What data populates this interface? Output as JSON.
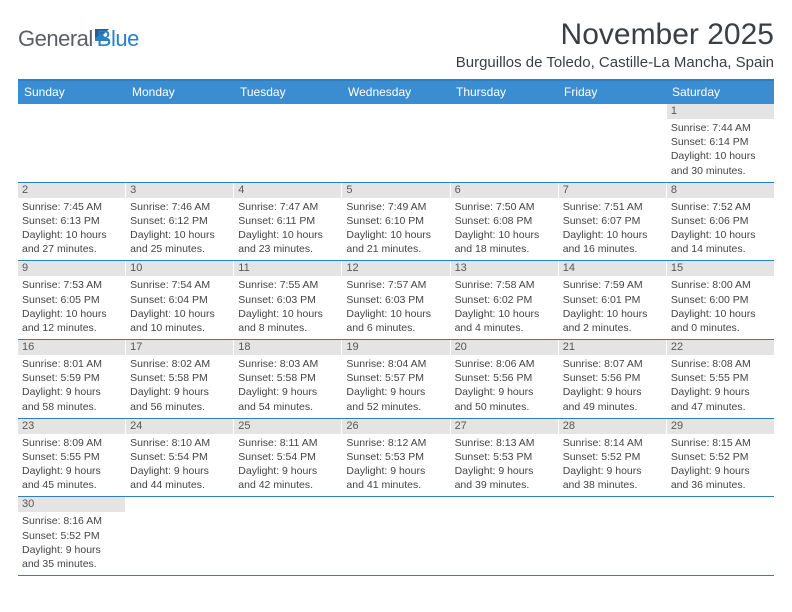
{
  "logo": {
    "part1": "General",
    "part2": "Blue"
  },
  "title": "November 2025",
  "location": "Burguillos de Toledo, Castille-La Mancha, Spain",
  "colors": {
    "header_bg": "#3b8dd1",
    "header_border_top": "#2c7fc2",
    "row_border": "#2c7fc2",
    "daynum_bg": "#e4e4e4",
    "text": "#333333",
    "logo_gray": "#5a5f66",
    "logo_blue": "#2c7fc2"
  },
  "daysOfWeek": [
    "Sunday",
    "Monday",
    "Tuesday",
    "Wednesday",
    "Thursday",
    "Friday",
    "Saturday"
  ],
  "firstWeekday": 6,
  "cells": [
    {
      "n": 1,
      "sunrise": "7:44 AM",
      "sunset": "6:14 PM",
      "daylight": "10 hours and 30 minutes."
    },
    {
      "n": 2,
      "sunrise": "7:45 AM",
      "sunset": "6:13 PM",
      "daylight": "10 hours and 27 minutes."
    },
    {
      "n": 3,
      "sunrise": "7:46 AM",
      "sunset": "6:12 PM",
      "daylight": "10 hours and 25 minutes."
    },
    {
      "n": 4,
      "sunrise": "7:47 AM",
      "sunset": "6:11 PM",
      "daylight": "10 hours and 23 minutes."
    },
    {
      "n": 5,
      "sunrise": "7:49 AM",
      "sunset": "6:10 PM",
      "daylight": "10 hours and 21 minutes."
    },
    {
      "n": 6,
      "sunrise": "7:50 AM",
      "sunset": "6:08 PM",
      "daylight": "10 hours and 18 minutes."
    },
    {
      "n": 7,
      "sunrise": "7:51 AM",
      "sunset": "6:07 PM",
      "daylight": "10 hours and 16 minutes."
    },
    {
      "n": 8,
      "sunrise": "7:52 AM",
      "sunset": "6:06 PM",
      "daylight": "10 hours and 14 minutes."
    },
    {
      "n": 9,
      "sunrise": "7:53 AM",
      "sunset": "6:05 PM",
      "daylight": "10 hours and 12 minutes."
    },
    {
      "n": 10,
      "sunrise": "7:54 AM",
      "sunset": "6:04 PM",
      "daylight": "10 hours and 10 minutes."
    },
    {
      "n": 11,
      "sunrise": "7:55 AM",
      "sunset": "6:03 PM",
      "daylight": "10 hours and 8 minutes."
    },
    {
      "n": 12,
      "sunrise": "7:57 AM",
      "sunset": "6:03 PM",
      "daylight": "10 hours and 6 minutes."
    },
    {
      "n": 13,
      "sunrise": "7:58 AM",
      "sunset": "6:02 PM",
      "daylight": "10 hours and 4 minutes."
    },
    {
      "n": 14,
      "sunrise": "7:59 AM",
      "sunset": "6:01 PM",
      "daylight": "10 hours and 2 minutes."
    },
    {
      "n": 15,
      "sunrise": "8:00 AM",
      "sunset": "6:00 PM",
      "daylight": "10 hours and 0 minutes."
    },
    {
      "n": 16,
      "sunrise": "8:01 AM",
      "sunset": "5:59 PM",
      "daylight": "9 hours and 58 minutes."
    },
    {
      "n": 17,
      "sunrise": "8:02 AM",
      "sunset": "5:58 PM",
      "daylight": "9 hours and 56 minutes."
    },
    {
      "n": 18,
      "sunrise": "8:03 AM",
      "sunset": "5:58 PM",
      "daylight": "9 hours and 54 minutes."
    },
    {
      "n": 19,
      "sunrise": "8:04 AM",
      "sunset": "5:57 PM",
      "daylight": "9 hours and 52 minutes."
    },
    {
      "n": 20,
      "sunrise": "8:06 AM",
      "sunset": "5:56 PM",
      "daylight": "9 hours and 50 minutes."
    },
    {
      "n": 21,
      "sunrise": "8:07 AM",
      "sunset": "5:56 PM",
      "daylight": "9 hours and 49 minutes."
    },
    {
      "n": 22,
      "sunrise": "8:08 AM",
      "sunset": "5:55 PM",
      "daylight": "9 hours and 47 minutes."
    },
    {
      "n": 23,
      "sunrise": "8:09 AM",
      "sunset": "5:55 PM",
      "daylight": "9 hours and 45 minutes."
    },
    {
      "n": 24,
      "sunrise": "8:10 AM",
      "sunset": "5:54 PM",
      "daylight": "9 hours and 44 minutes."
    },
    {
      "n": 25,
      "sunrise": "8:11 AM",
      "sunset": "5:54 PM",
      "daylight": "9 hours and 42 minutes."
    },
    {
      "n": 26,
      "sunrise": "8:12 AM",
      "sunset": "5:53 PM",
      "daylight": "9 hours and 41 minutes."
    },
    {
      "n": 27,
      "sunrise": "8:13 AM",
      "sunset": "5:53 PM",
      "daylight": "9 hours and 39 minutes."
    },
    {
      "n": 28,
      "sunrise": "8:14 AM",
      "sunset": "5:52 PM",
      "daylight": "9 hours and 38 minutes."
    },
    {
      "n": 29,
      "sunrise": "8:15 AM",
      "sunset": "5:52 PM",
      "daylight": "9 hours and 36 minutes."
    },
    {
      "n": 30,
      "sunrise": "8:16 AM",
      "sunset": "5:52 PM",
      "daylight": "9 hours and 35 minutes."
    }
  ],
  "labels": {
    "sunrise": "Sunrise: ",
    "sunset": "Sunset: ",
    "daylight": "Daylight: "
  }
}
